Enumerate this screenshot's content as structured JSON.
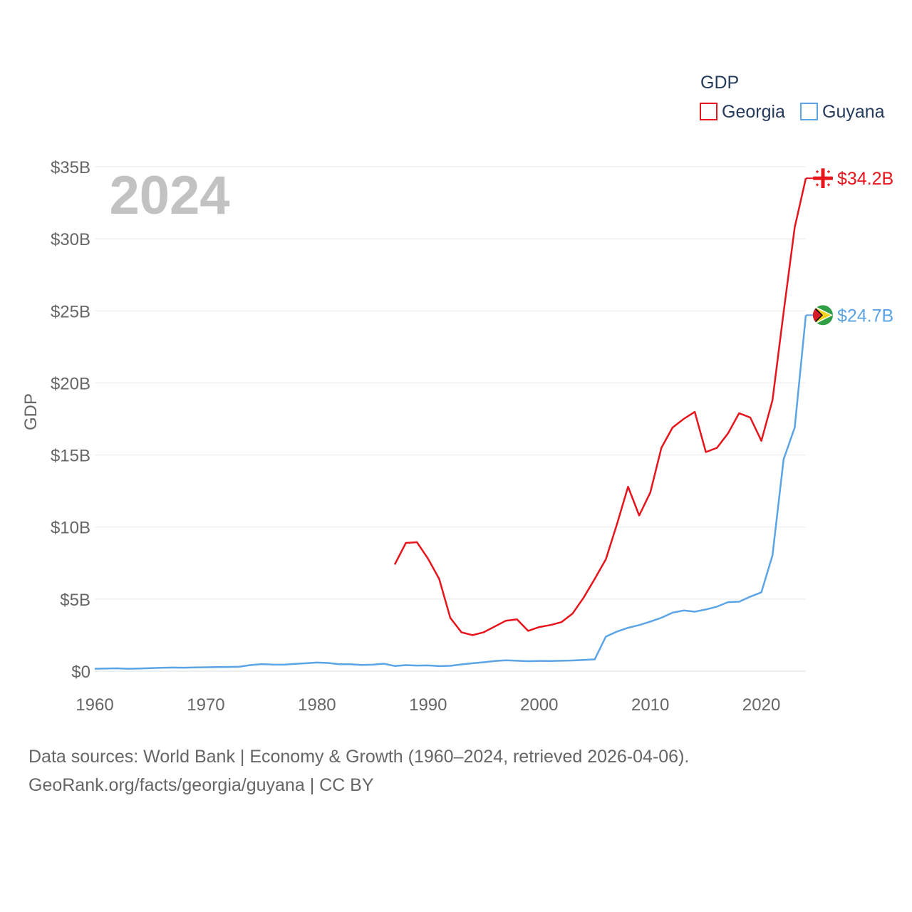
{
  "chart_data": {
    "type": "line",
    "year_label": "2024",
    "ylabel": "GDP",
    "xlabel": "",
    "legend": {
      "title": "GDP",
      "position": "top-right"
    },
    "xlim": [
      1960,
      2024
    ],
    "ylim": [
      0,
      35
    ],
    "y_unit": "billion USD",
    "x_ticks": [
      1960,
      1970,
      1980,
      1990,
      2000,
      2010,
      2020
    ],
    "x_tick_labels": [
      "1960",
      "1970",
      "1980",
      "1990",
      "2000",
      "2010",
      "2020"
    ],
    "y_ticks": [
      0,
      5,
      10,
      15,
      20,
      25,
      30,
      35
    ],
    "y_tick_labels": [
      "$0",
      "$5B",
      "$10B",
      "$15B",
      "$20B",
      "$25B",
      "$30B",
      "$35B"
    ],
    "series": [
      {
        "name": "Georgia",
        "color": "#e8141c",
        "end_label": "$34.2B",
        "flag_icon": "georgia-flag-icon",
        "x": [
          1987,
          1988,
          1989,
          1990,
          1991,
          1992,
          1993,
          1994,
          1995,
          1996,
          1997,
          1998,
          1999,
          2000,
          2001,
          2002,
          2003,
          2004,
          2005,
          2006,
          2007,
          2008,
          2009,
          2010,
          2011,
          2012,
          2013,
          2014,
          2015,
          2016,
          2017,
          2018,
          2019,
          2020,
          2021,
          2022,
          2023,
          2024
        ],
        "values": [
          7.4,
          8.9,
          8.95,
          7.8,
          6.4,
          3.7,
          2.7,
          2.5,
          2.7,
          3.1,
          3.5,
          3.6,
          2.8,
          3.06,
          3.2,
          3.4,
          3.99,
          5.1,
          6.4,
          7.76,
          10.2,
          12.8,
          10.8,
          12.4,
          15.5,
          16.9,
          17.5,
          17.99,
          15.2,
          15.5,
          16.5,
          17.9,
          17.6,
          15.98,
          18.8,
          24.9,
          30.8,
          34.2
        ]
      },
      {
        "name": "Guyana",
        "color": "#5ba4e5",
        "end_label": "$24.7B",
        "flag_icon": "guyana-flag-icon",
        "x": [
          1960,
          1961,
          1962,
          1963,
          1964,
          1965,
          1966,
          1967,
          1968,
          1969,
          1970,
          1971,
          1972,
          1973,
          1974,
          1975,
          1976,
          1977,
          1978,
          1979,
          1980,
          1981,
          1982,
          1983,
          1984,
          1985,
          1986,
          1987,
          1988,
          1989,
          1990,
          1991,
          1992,
          1993,
          1994,
          1995,
          1996,
          1997,
          1998,
          1999,
          2000,
          2001,
          2002,
          2003,
          2004,
          2005,
          2006,
          2007,
          2008,
          2009,
          2010,
          2011,
          2012,
          2013,
          2014,
          2015,
          2016,
          2017,
          2018,
          2019,
          2020,
          2021,
          2022,
          2023,
          2024
        ],
        "values": [
          0.17,
          0.19,
          0.2,
          0.17,
          0.19,
          0.21,
          0.23,
          0.25,
          0.24,
          0.26,
          0.27,
          0.28,
          0.29,
          0.31,
          0.42,
          0.49,
          0.46,
          0.45,
          0.51,
          0.55,
          0.6,
          0.57,
          0.48,
          0.48,
          0.43,
          0.45,
          0.52,
          0.36,
          0.42,
          0.39,
          0.4,
          0.35,
          0.37,
          0.47,
          0.55,
          0.62,
          0.7,
          0.75,
          0.72,
          0.69,
          0.71,
          0.7,
          0.72,
          0.74,
          0.78,
          0.82,
          2.4,
          2.75,
          3.01,
          3.2,
          3.44,
          3.71,
          4.06,
          4.21,
          4.13,
          4.28,
          4.48,
          4.79,
          4.82,
          5.17,
          5.47,
          8.04,
          14.7,
          16.9,
          24.7
        ]
      }
    ]
  },
  "footer": {
    "line1": "Data sources: World Bank | Economy & Growth (1960–2024, retrieved 2026-04-06).",
    "line2": "GeoRank.org/facts/georgia/guyana | CC BY"
  }
}
